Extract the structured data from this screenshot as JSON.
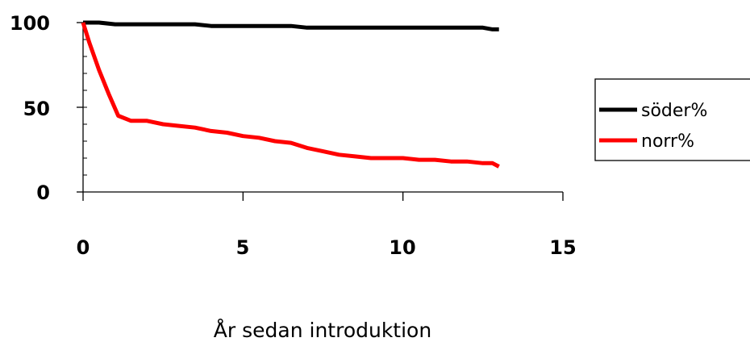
{
  "chart_data": {
    "type": "line",
    "title": "",
    "xlabel": "År sedan introduktion",
    "ylabel": "",
    "xlim": [
      0,
      15
    ],
    "ylim": [
      0,
      100
    ],
    "x_ticks": [
      "0",
      "5",
      "10",
      "15"
    ],
    "y_ticks": [
      "0",
      "50",
      "100"
    ],
    "grid": false,
    "legend_position": "right",
    "series": [
      {
        "name": "söder%",
        "color": "#000000",
        "x": [
          0,
          0.5,
          1,
          1.5,
          2,
          2.5,
          3,
          3.5,
          4,
          4.5,
          5,
          5.5,
          6,
          6.5,
          7,
          7.5,
          8,
          8.5,
          9,
          9.5,
          10,
          10.5,
          11,
          11.5,
          12,
          12.5,
          12.8,
          13
        ],
        "values": [
          100,
          100,
          99,
          99,
          99,
          99,
          99,
          99,
          98,
          98,
          98,
          98,
          98,
          98,
          97,
          97,
          97,
          97,
          97,
          97,
          97,
          97,
          97,
          97,
          97,
          97,
          96,
          96
        ]
      },
      {
        "name": "norr%",
        "color": "#ff0000",
        "x": [
          0,
          0.2,
          0.5,
          0.8,
          1.1,
          1.5,
          2,
          2.5,
          3,
          3.5,
          4,
          4.5,
          5,
          5.5,
          6,
          6.5,
          7,
          7.5,
          8,
          8.5,
          9,
          9.5,
          10,
          10.5,
          11,
          11.5,
          12,
          12.5,
          12.8,
          13
        ],
        "values": [
          100,
          88,
          72,
          58,
          45,
          42,
          42,
          40,
          39,
          38,
          36,
          35,
          33,
          32,
          30,
          29,
          26,
          24,
          22,
          21,
          20,
          20,
          20,
          19,
          19,
          18,
          18,
          17,
          17,
          15
        ]
      }
    ]
  }
}
